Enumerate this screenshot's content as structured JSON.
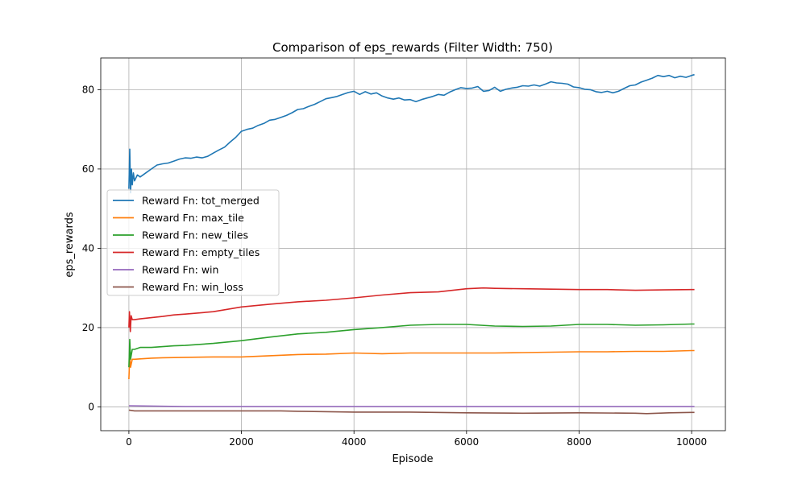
{
  "chart_data": {
    "type": "line",
    "title": "Comparison of eps_rewards (Filter Width: 750)",
    "xlabel": "Episode",
    "ylabel": "eps_rewards",
    "xlim": [
      -500,
      10600
    ],
    "ylim": [
      -6,
      88
    ],
    "xticks": [
      0,
      2000,
      4000,
      6000,
      8000,
      10000
    ],
    "yticks": [
      0,
      20,
      40,
      60,
      80
    ],
    "grid": true,
    "legend_position": "center-left",
    "series": [
      {
        "name": "Reward Fn: tot_merged",
        "color": "#1f77b4",
        "points": [
          [
            0,
            55
          ],
          [
            15,
            65
          ],
          [
            30,
            54
          ],
          [
            45,
            60
          ],
          [
            60,
            56
          ],
          [
            80,
            59
          ],
          [
            100,
            57
          ],
          [
            150,
            58.5
          ],
          [
            200,
            58
          ],
          [
            300,
            59
          ],
          [
            400,
            60
          ],
          [
            500,
            61
          ],
          [
            600,
            61.3
          ],
          [
            700,
            61.5
          ],
          [
            800,
            62
          ],
          [
            900,
            62.5
          ],
          [
            1000,
            62.8
          ],
          [
            1100,
            62.7
          ],
          [
            1200,
            63
          ],
          [
            1300,
            62.8
          ],
          [
            1400,
            63.2
          ],
          [
            1500,
            64
          ],
          [
            1600,
            64.8
          ],
          [
            1700,
            65.5
          ],
          [
            1800,
            66.8
          ],
          [
            1900,
            68
          ],
          [
            2000,
            69.5
          ],
          [
            2100,
            70
          ],
          [
            2200,
            70.3
          ],
          [
            2300,
            71
          ],
          [
            2400,
            71.5
          ],
          [
            2500,
            72.3
          ],
          [
            2600,
            72.5
          ],
          [
            2700,
            73
          ],
          [
            2800,
            73.5
          ],
          [
            2900,
            74.2
          ],
          [
            3000,
            75
          ],
          [
            3100,
            75.2
          ],
          [
            3200,
            75.8
          ],
          [
            3300,
            76.3
          ],
          [
            3400,
            77
          ],
          [
            3500,
            77.7
          ],
          [
            3600,
            78
          ],
          [
            3700,
            78.3
          ],
          [
            3800,
            78.8
          ],
          [
            3900,
            79.3
          ],
          [
            4000,
            79.6
          ],
          [
            4100,
            78.8
          ],
          [
            4200,
            79.5
          ],
          [
            4300,
            78.9
          ],
          [
            4400,
            79.2
          ],
          [
            4500,
            78.4
          ],
          [
            4600,
            77.9
          ],
          [
            4700,
            77.6
          ],
          [
            4800,
            77.9
          ],
          [
            4900,
            77.4
          ],
          [
            5000,
            77.5
          ],
          [
            5100,
            77
          ],
          [
            5200,
            77.5
          ],
          [
            5300,
            77.9
          ],
          [
            5400,
            78.3
          ],
          [
            5500,
            78.8
          ],
          [
            5600,
            78.6
          ],
          [
            5700,
            79.4
          ],
          [
            5800,
            80
          ],
          [
            5900,
            80.5
          ],
          [
            6000,
            80.3
          ],
          [
            6100,
            80.4
          ],
          [
            6200,
            80.8
          ],
          [
            6300,
            79.6
          ],
          [
            6400,
            79.8
          ],
          [
            6500,
            80.6
          ],
          [
            6600,
            79.6
          ],
          [
            6700,
            80.1
          ],
          [
            6800,
            80.4
          ],
          [
            6900,
            80.6
          ],
          [
            7000,
            81
          ],
          [
            7100,
            80.9
          ],
          [
            7200,
            81.2
          ],
          [
            7300,
            80.9
          ],
          [
            7400,
            81.4
          ],
          [
            7500,
            82
          ],
          [
            7600,
            81.7
          ],
          [
            7700,
            81.6
          ],
          [
            7800,
            81.4
          ],
          [
            7900,
            80.7
          ],
          [
            8000,
            80.5
          ],
          [
            8100,
            80.1
          ],
          [
            8200,
            80
          ],
          [
            8300,
            79.5
          ],
          [
            8400,
            79.3
          ],
          [
            8500,
            79.6
          ],
          [
            8600,
            79.2
          ],
          [
            8700,
            79.6
          ],
          [
            8800,
            80.3
          ],
          [
            8900,
            81
          ],
          [
            9000,
            81.2
          ],
          [
            9100,
            81.9
          ],
          [
            9200,
            82.4
          ],
          [
            9300,
            82.9
          ],
          [
            9400,
            83.6
          ],
          [
            9500,
            83.3
          ],
          [
            9600,
            83.6
          ],
          [
            9700,
            83
          ],
          [
            9800,
            83.4
          ],
          [
            9900,
            83.1
          ],
          [
            10000,
            83.6
          ],
          [
            10050,
            83.8
          ]
        ]
      },
      {
        "name": "Reward Fn: max_tile",
        "color": "#ff7f0e",
        "points": [
          [
            0,
            7
          ],
          [
            15,
            13
          ],
          [
            30,
            10
          ],
          [
            60,
            12
          ],
          [
            100,
            12
          ],
          [
            200,
            12.1
          ],
          [
            400,
            12.3
          ],
          [
            600,
            12.4
          ],
          [
            1000,
            12.5
          ],
          [
            1500,
            12.6
          ],
          [
            2000,
            12.6
          ],
          [
            2500,
            12.9
          ],
          [
            3000,
            13.2
          ],
          [
            3500,
            13.3
          ],
          [
            4000,
            13.6
          ],
          [
            4500,
            13.4
          ],
          [
            5000,
            13.6
          ],
          [
            5500,
            13.6
          ],
          [
            6000,
            13.6
          ],
          [
            6500,
            13.6
          ],
          [
            7000,
            13.7
          ],
          [
            7500,
            13.8
          ],
          [
            8000,
            13.9
          ],
          [
            8500,
            13.9
          ],
          [
            9000,
            14
          ],
          [
            9500,
            14
          ],
          [
            10000,
            14.2
          ],
          [
            10050,
            14.2
          ]
        ]
      },
      {
        "name": "Reward Fn: new_tiles",
        "color": "#2ca02c",
        "points": [
          [
            0,
            10
          ],
          [
            15,
            17
          ],
          [
            30,
            12
          ],
          [
            60,
            14.5
          ],
          [
            100,
            14.5
          ],
          [
            200,
            15
          ],
          [
            400,
            15
          ],
          [
            600,
            15.2
          ],
          [
            800,
            15.4
          ],
          [
            1000,
            15.5
          ],
          [
            1500,
            16
          ],
          [
            2000,
            16.7
          ],
          [
            2500,
            17.6
          ],
          [
            3000,
            18.4
          ],
          [
            3500,
            18.8
          ],
          [
            4000,
            19.5
          ],
          [
            4500,
            20
          ],
          [
            5000,
            20.6
          ],
          [
            5500,
            20.8
          ],
          [
            6000,
            20.8
          ],
          [
            6500,
            20.4
          ],
          [
            7000,
            20.3
          ],
          [
            7500,
            20.4
          ],
          [
            8000,
            20.8
          ],
          [
            8500,
            20.8
          ],
          [
            9000,
            20.6
          ],
          [
            9500,
            20.7
          ],
          [
            10000,
            20.9
          ],
          [
            10050,
            20.9
          ]
        ]
      },
      {
        "name": "Reward Fn: empty_tiles",
        "color": "#d62728",
        "points": [
          [
            0,
            20
          ],
          [
            10,
            24
          ],
          [
            25,
            19
          ],
          [
            40,
            23
          ],
          [
            60,
            22
          ],
          [
            100,
            22
          ],
          [
            200,
            22.2
          ],
          [
            400,
            22.5
          ],
          [
            600,
            22.8
          ],
          [
            800,
            23.2
          ],
          [
            1000,
            23.4
          ],
          [
            1500,
            24
          ],
          [
            2000,
            25.2
          ],
          [
            2500,
            25.9
          ],
          [
            3000,
            26.5
          ],
          [
            3500,
            26.9
          ],
          [
            4000,
            27.5
          ],
          [
            4500,
            28.2
          ],
          [
            5000,
            28.8
          ],
          [
            5500,
            29
          ],
          [
            6000,
            29.8
          ],
          [
            6300,
            30
          ],
          [
            6500,
            29.9
          ],
          [
            7000,
            29.8
          ],
          [
            7500,
            29.7
          ],
          [
            8000,
            29.6
          ],
          [
            8500,
            29.6
          ],
          [
            9000,
            29.4
          ],
          [
            9500,
            29.5
          ],
          [
            10000,
            29.6
          ],
          [
            10050,
            29.6
          ]
        ]
      },
      {
        "name": "Reward Fn: win",
        "color": "#9467bd",
        "points": [
          [
            0,
            0.3
          ],
          [
            1000,
            0.1
          ],
          [
            2000,
            0.1
          ],
          [
            4000,
            0.1
          ],
          [
            6000,
            0.1
          ],
          [
            8000,
            0.1
          ],
          [
            10050,
            0.1
          ]
        ]
      },
      {
        "name": "Reward Fn: win_loss",
        "color": "#8c564b",
        "points": [
          [
            0,
            -0.8
          ],
          [
            100,
            -1
          ],
          [
            500,
            -1
          ],
          [
            1000,
            -1
          ],
          [
            2000,
            -1
          ],
          [
            2700,
            -1
          ],
          [
            3000,
            -1.1
          ],
          [
            4000,
            -1.3
          ],
          [
            5000,
            -1.3
          ],
          [
            6000,
            -1.5
          ],
          [
            7000,
            -1.6
          ],
          [
            8000,
            -1.5
          ],
          [
            9000,
            -1.6
          ],
          [
            9200,
            -1.7
          ],
          [
            9600,
            -1.5
          ],
          [
            10000,
            -1.4
          ],
          [
            10050,
            -1.4
          ]
        ]
      }
    ]
  }
}
